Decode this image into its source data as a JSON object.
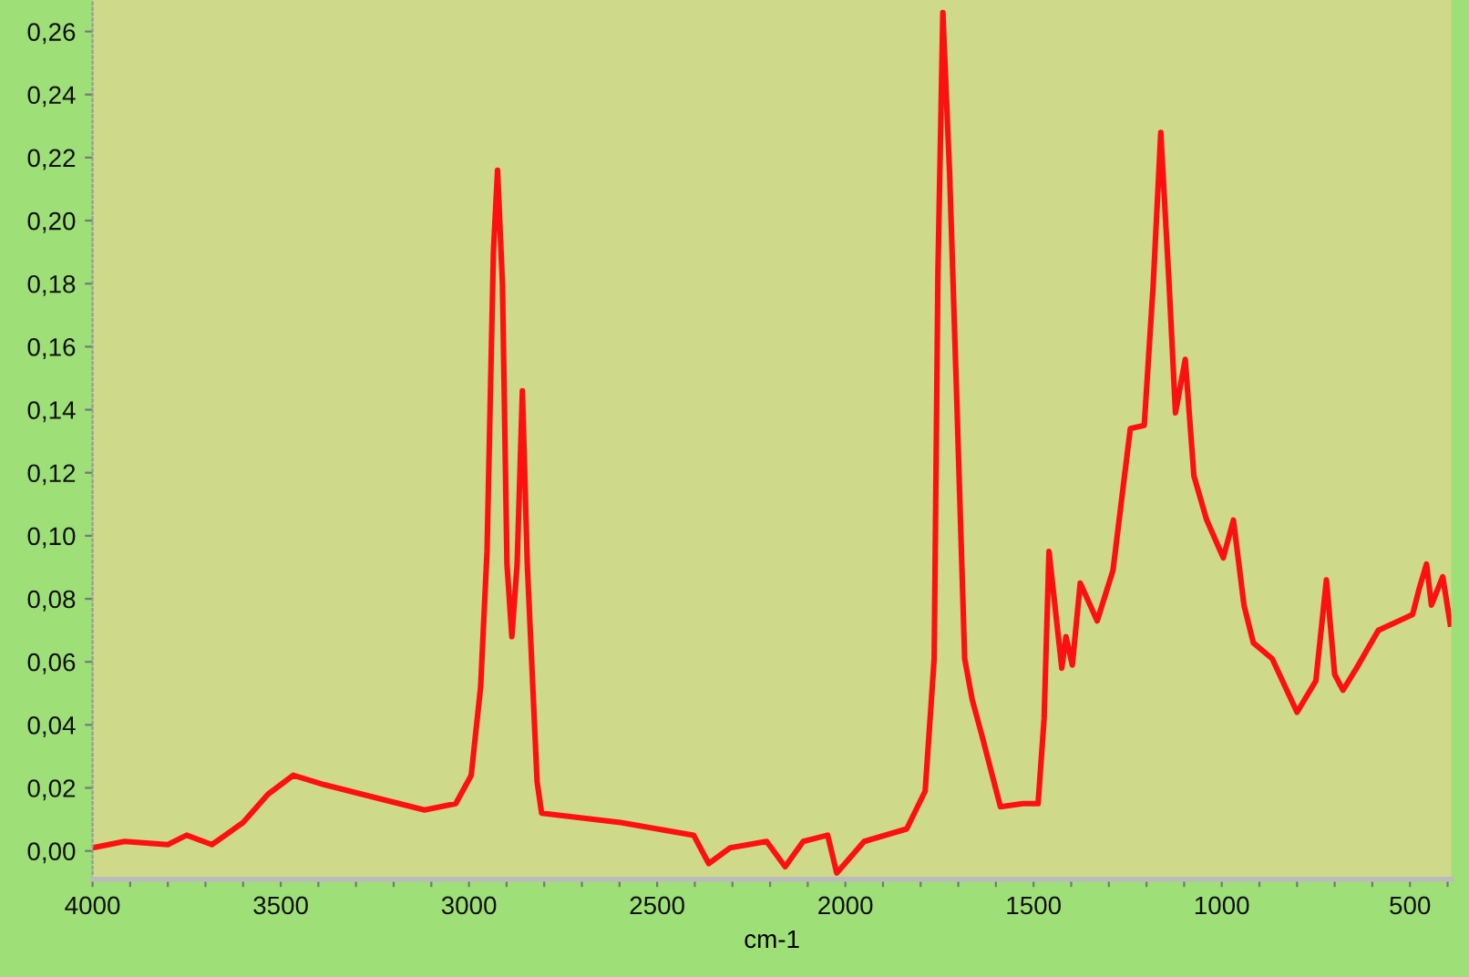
{
  "chart_data": {
    "type": "line",
    "xlabel": "cm-1",
    "xlim": [
      4000,
      390
    ],
    "ylim": [
      -0.009,
      0.27
    ],
    "xticks": [
      4000,
      {
        "value": 3900,
        "label": null
      },
      {
        "value": 3800,
        "label": null
      },
      {
        "value": 3700,
        "label": null
      },
      {
        "value": 3600,
        "label": null
      },
      3500,
      {
        "value": 3400,
        "label": null
      },
      {
        "value": 3300,
        "label": null
      },
      {
        "value": 3200,
        "label": null
      },
      {
        "value": 3100,
        "label": null
      },
      3000,
      {
        "value": 2900,
        "label": null
      },
      {
        "value": 2800,
        "label": null
      },
      {
        "value": 2700,
        "label": null
      },
      {
        "value": 2600,
        "label": null
      },
      2500,
      {
        "value": 2400,
        "label": null
      },
      {
        "value": 2300,
        "label": null
      },
      {
        "value": 2200,
        "label": null
      },
      {
        "value": 2100,
        "label": null
      },
      2000,
      {
        "value": 1900,
        "label": null
      },
      {
        "value": 1800,
        "label": null
      },
      {
        "value": 1700,
        "label": null
      },
      {
        "value": 1600,
        "label": null
      },
      1500,
      {
        "value": 1400,
        "label": null
      },
      {
        "value": 1300,
        "label": null
      },
      {
        "value": 1200,
        "label": null
      },
      {
        "value": 1100,
        "label": null
      },
      1000,
      {
        "value": 900,
        "label": null
      },
      {
        "value": 800,
        "label": null
      },
      {
        "value": 700,
        "label": null
      },
      {
        "value": 600,
        "label": null
      },
      500,
      {
        "value": 400,
        "label": null
      }
    ],
    "yticks": [
      {
        "value": 0,
        "label": "0,00"
      },
      {
        "value": 0.02,
        "label": "0,02"
      },
      {
        "value": 0.04,
        "label": "0,04"
      },
      {
        "value": 0.06,
        "label": "0,06"
      },
      {
        "value": 0.08,
        "label": "0,08"
      },
      {
        "value": 0.1,
        "label": "0,10"
      },
      {
        "value": 0.12,
        "label": "0,12"
      },
      {
        "value": 0.14,
        "label": "0,14"
      },
      {
        "value": 0.16,
        "label": "0,16"
      },
      {
        "value": 0.18,
        "label": "0,18"
      },
      {
        "value": 0.2,
        "label": "0,20"
      },
      {
        "value": 0.22,
        "label": "0,22"
      },
      {
        "value": 0.24,
        "label": "0,24"
      },
      {
        "value": 0.26,
        "label": "0,26"
      }
    ],
    "grid": false,
    "marker": "none",
    "line_style": "solid",
    "series": [
      {
        "color": "#ff1010",
        "x": [
          4000,
          3915,
          3800,
          3750,
          3683,
          3600,
          3534,
          3467,
          3384,
          3284,
          3118,
          3035,
          2994,
          2969,
          2952,
          2935,
          2924,
          2911,
          2899,
          2886,
          2872,
          2858,
          2845,
          2819,
          2807,
          2597,
          2403,
          2363,
          2306,
          2209,
          2160,
          2112,
          2047,
          2023,
          1950,
          1837,
          1788,
          1764,
          1754,
          1741,
          1723,
          1704,
          1683,
          1663,
          1638,
          1588,
          1529,
          1488,
          1472,
          1459,
          1425,
          1414,
          1397,
          1376,
          1331,
          1289,
          1243,
          1206,
          1182,
          1162,
          1140,
          1123,
          1097,
          1074,
          1040,
          996,
          969,
          941,
          916,
          866,
          800,
          750,
          722,
          700,
          678,
          642,
          584,
          493,
          476,
          456,
          443,
          413,
          393
        ],
        "values": [
          0.001,
          0.003,
          0.002,
          0.005,
          0.002,
          0.009,
          0.018,
          0.024,
          0.021,
          0.018,
          0.013,
          0.015,
          0.024,
          0.052,
          0.095,
          0.19,
          0.216,
          0.18,
          0.091,
          0.068,
          0.091,
          0.146,
          0.091,
          0.022,
          0.012,
          0.009,
          0.005,
          -0.004,
          0.001,
          0.003,
          -0.005,
          0.003,
          0.005,
          -0.007,
          0.003,
          0.007,
          0.019,
          0.061,
          0.184,
          0.266,
          0.215,
          0.143,
          0.061,
          0.048,
          0.037,
          0.014,
          0.015,
          0.015,
          0.042,
          0.095,
          0.058,
          0.068,
          0.059,
          0.085,
          0.073,
          0.089,
          0.134,
          0.135,
          0.18,
          0.228,
          0.18,
          0.139,
          0.156,
          0.119,
          0.105,
          0.093,
          0.105,
          0.078,
          0.066,
          0.061,
          0.044,
          0.054,
          0.086,
          0.056,
          0.051,
          0.058,
          0.07,
          0.075,
          0.083,
          0.091,
          0.078,
          0.087,
          0.072
        ]
      }
    ]
  }
}
